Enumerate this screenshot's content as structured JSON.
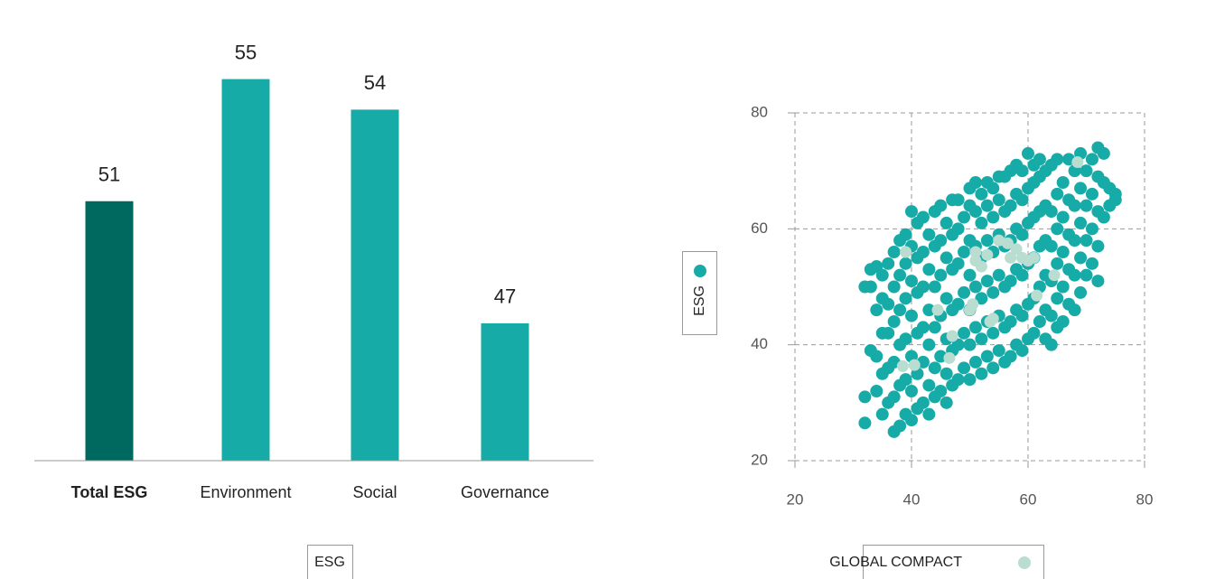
{
  "chart_data": [
    {
      "type": "bar",
      "categories": [
        "Total ESG",
        "Environment",
        "Social",
        "Governance"
      ],
      "series": [
        {
          "name": "ESG",
          "values": [
            51,
            55,
            54,
            47
          ]
        }
      ],
      "colors": [
        "#00695f",
        "#17aba7",
        "#17aba7",
        "#17aba7"
      ],
      "emphasis": [
        true,
        false,
        false,
        false
      ],
      "ylim": [
        42.5,
        57
      ]
    },
    {
      "type": "scatter",
      "x_label": "GLOBAL COMPACT",
      "y_label": "ESG",
      "xlim": [
        20,
        80
      ],
      "ylim": [
        20,
        80
      ],
      "xticks": [
        20,
        40,
        60,
        80
      ],
      "yticks": [
        20,
        40,
        60,
        80
      ],
      "grid": true,
      "series": [
        {
          "color": "#17aba7",
          "x": [
            32,
            32,
            32,
            33,
            33,
            33,
            34,
            34,
            34,
            34,
            35,
            35,
            35,
            35,
            35,
            36,
            36,
            36,
            36,
            36,
            37,
            37,
            37,
            37,
            37,
            37,
            38,
            38,
            38,
            38,
            38,
            38,
            39,
            39,
            39,
            39,
            39,
            39,
            40,
            40,
            40,
            40,
            40,
            40,
            40,
            41,
            41,
            41,
            41,
            41,
            41,
            42,
            42,
            42,
            42,
            42,
            42,
            43,
            43,
            43,
            43,
            43,
            43,
            44,
            44,
            44,
            44,
            44,
            44,
            45,
            45,
            45,
            45,
            45,
            45,
            46,
            46,
            46,
            46,
            46,
            46,
            47,
            47,
            47,
            47,
            47,
            47,
            48,
            48,
            48,
            48,
            48,
            48,
            49,
            49,
            49,
            49,
            49,
            50,
            50,
            50,
            50,
            50,
            50,
            50,
            51,
            51,
            51,
            51,
            51,
            51,
            52,
            52,
            52,
            52,
            52,
            52,
            53,
            53,
            53,
            53,
            53,
            53,
            54,
            54,
            54,
            54,
            54,
            54,
            55,
            55,
            55,
            55,
            55,
            55,
            56,
            56,
            56,
            56,
            56,
            56,
            57,
            57,
            57,
            57,
            57,
            57,
            58,
            58,
            58,
            58,
            58,
            58,
            59,
            59,
            59,
            59,
            59,
            59,
            60,
            60,
            60,
            60,
            60,
            60,
            61,
            61,
            61,
            61,
            61,
            61,
            62,
            62,
            62,
            62,
            62,
            62,
            63,
            63,
            63,
            63,
            63,
            63,
            64,
            64,
            64,
            64,
            64,
            64,
            65,
            65,
            65,
            65,
            65,
            65,
            66,
            66,
            66,
            66,
            66,
            67,
            67,
            67,
            67,
            67,
            68,
            68,
            68,
            68,
            68,
            69,
            69,
            69,
            69,
            69,
            70,
            70,
            70,
            70,
            71,
            71,
            71,
            71,
            72,
            72,
            72,
            72,
            72,
            73,
            73,
            73,
            74,
            74,
            75,
            75
          ],
          "values": [
            31,
            26.5,
            50,
            39,
            50,
            53,
            32,
            38,
            46,
            53.5,
            28,
            35,
            42,
            48,
            52,
            30,
            36,
            42,
            47,
            54,
            25,
            31,
            37,
            44,
            50,
            56,
            26,
            33,
            40,
            46,
            52,
            58,
            28,
            34,
            41,
            48,
            54,
            59,
            27,
            32,
            38,
            45,
            51,
            57,
            63,
            29,
            35,
            42,
            49,
            55,
            61,
            30,
            37,
            43,
            50,
            56,
            62,
            28,
            33,
            40,
            46,
            53,
            59,
            31,
            36,
            43,
            50,
            57,
            63,
            32,
            38,
            45,
            52,
            58,
            64,
            30,
            35,
            41,
            48,
            55,
            61,
            33,
            39,
            46,
            53,
            59,
            65,
            34,
            40,
            47,
            54,
            60,
            65,
            36,
            42,
            49,
            56,
            62,
            34,
            40,
            46,
            52,
            58,
            64,
            67,
            37,
            43,
            50,
            57,
            63,
            68,
            35,
            41,
            48,
            55,
            61,
            66,
            38,
            44,
            51,
            58,
            64,
            68,
            36,
            42,
            49,
            56,
            62,
            67,
            39,
            45,
            52,
            59,
            65,
            69,
            37,
            43,
            50,
            57,
            63,
            69,
            38,
            44,
            51,
            58,
            64,
            70,
            40,
            46,
            53,
            60,
            66,
            71,
            39,
            45,
            52,
            59,
            65,
            70,
            41,
            47,
            54,
            61,
            67,
            73,
            42,
            48,
            55,
            62,
            68,
            71,
            44,
            50,
            57,
            63,
            69,
            72,
            41,
            46,
            52,
            58,
            64,
            70,
            40,
            45,
            51,
            57,
            63,
            71,
            43,
            48,
            54,
            60,
            66,
            72,
            44,
            50,
            56,
            62,
            68,
            47,
            53,
            59,
            65,
            72,
            46,
            52,
            58,
            64,
            70,
            49,
            55,
            61,
            67,
            73,
            52,
            58,
            64,
            70,
            54,
            60,
            66,
            72,
            51,
            57,
            63,
            69,
            74,
            62,
            68,
            73,
            64,
            67,
            65,
            66
          ]
        },
        {
          "color": "#b9ddd0",
          "x": [
            38.5,
            40.5,
            39,
            44.5,
            47,
            46.5,
            50,
            50.5,
            51,
            51,
            52,
            53,
            53.5,
            54,
            55,
            56.5,
            57,
            58,
            59,
            60,
            61,
            61.5,
            64.5,
            68.5
          ],
          "values": [
            36.3,
            36.5,
            56,
            46,
            41.5,
            37.7,
            46,
            47,
            54.5,
            56,
            53.5,
            55.5,
            44,
            44.5,
            58,
            57.5,
            55,
            56.5,
            55,
            54.5,
            55,
            48.5,
            52,
            71.5
          ]
        }
      ]
    }
  ]
}
